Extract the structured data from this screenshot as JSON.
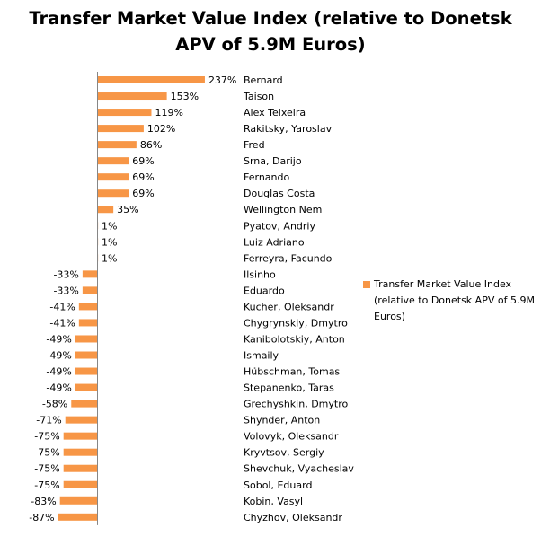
{
  "chart_data": {
    "type": "bar",
    "orientation": "horizontal",
    "title": "Transfer Market Value Index (relative to Donetsk APV of 5.9M Euros)",
    "title_lines": [
      "Transfer Market Value Index (relative to Donetsk",
      "APV of 5.9M Euros)"
    ],
    "categories": [
      "Bernard",
      "Taison",
      "Alex Teixeira",
      "Rakitsky, Yaroslav",
      "Fred",
      "Srna, Darijo",
      "Fernando",
      "Douglas Costa",
      "Wellington Nem",
      "Pyatov, Andriy",
      "Luiz Adriano",
      "Ferreyra, Facundo",
      "Ilsinho",
      "Eduardo",
      "Kucher, Oleksandr",
      "Chygrynskiy, Dmytro",
      "Kanibolotskiy, Anton",
      "Ismaily",
      "Hübschman, Tomas",
      "Stepanenko, Taras",
      "Grechyshkin, Dmytro",
      "Shynder, Anton",
      "Volovyk, Oleksandr",
      "Kryvtsov, Sergiy",
      "Shevchuk, Vyacheslav",
      "Sobol, Eduard",
      "Kobin, Vasyl",
      "Chyzhov, Oleksandr"
    ],
    "series": [
      {
        "name": "Transfer Market Value Index (relative to Donetsk APV of 5.9M Euros)",
        "values": [
          237,
          153,
          119,
          102,
          86,
          69,
          69,
          69,
          35,
          1,
          1,
          1,
          -33,
          -33,
          -41,
          -41,
          -49,
          -49,
          -49,
          -49,
          -58,
          -71,
          -75,
          -75,
          -75,
          -75,
          -83,
          -87
        ],
        "data_labels": [
          "237%",
          "153%",
          "119%",
          "102%",
          "86%",
          "69%",
          "69%",
          "69%",
          "35%",
          "1%",
          "1%",
          "1%",
          "-33%",
          "-33%",
          "-41%",
          "-41%",
          "-49%",
          "-49%",
          "-49%",
          "-49%",
          "-58%",
          "-71%",
          "-75%",
          "-75%",
          "-75%",
          "-75%",
          "-83%",
          "-87%"
        ]
      }
    ],
    "value_format": "percent",
    "legend_position": "right",
    "grid": false,
    "bar_color": "#F79646",
    "axis_color": "#868686"
  }
}
